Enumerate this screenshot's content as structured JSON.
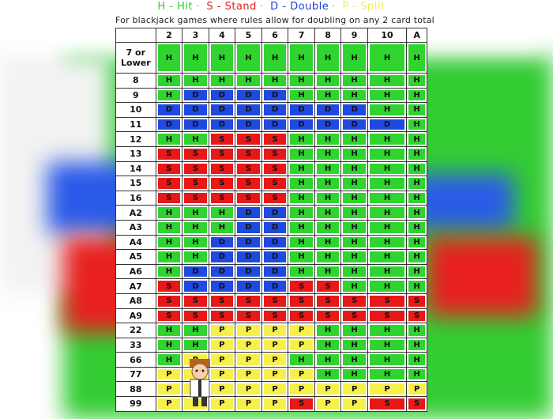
{
  "legend": {
    "hit": "H - Hit",
    "stand": "S - Stand",
    "double": "D - Double",
    "split": "P - Split"
  },
  "subtitle": "For blackjack games where rules allow for doubling on any 2 card total",
  "columns": [
    "2",
    "3",
    "4",
    "5",
    "6",
    "7",
    "8",
    "9",
    "10",
    "A"
  ],
  "rows": [
    {
      "label": "7 or Lower",
      "cells": [
        "H",
        "H",
        "H",
        "H",
        "H",
        "H",
        "H",
        "H",
        "H",
        "H"
      ]
    },
    {
      "label": "8",
      "cells": [
        "H",
        "H",
        "H",
        "H",
        "H",
        "H",
        "H",
        "H",
        "H",
        "H"
      ]
    },
    {
      "label": "9",
      "cells": [
        "H",
        "D",
        "D",
        "D",
        "D",
        "H",
        "H",
        "H",
        "H",
        "H"
      ]
    },
    {
      "label": "10",
      "cells": [
        "D",
        "D",
        "D",
        "D",
        "D",
        "D",
        "D",
        "D",
        "H",
        "H"
      ]
    },
    {
      "label": "11",
      "cells": [
        "D",
        "D",
        "D",
        "D",
        "D",
        "D",
        "D",
        "D",
        "D",
        "H"
      ]
    },
    {
      "label": "12",
      "cells": [
        "H",
        "H",
        "S",
        "S",
        "S",
        "H",
        "H",
        "H",
        "H",
        "H"
      ]
    },
    {
      "label": "13",
      "cells": [
        "S",
        "S",
        "S",
        "S",
        "S",
        "H",
        "H",
        "H",
        "H",
        "H"
      ]
    },
    {
      "label": "14",
      "cells": [
        "S",
        "S",
        "S",
        "S",
        "S",
        "H",
        "H",
        "H",
        "H",
        "H"
      ]
    },
    {
      "label": "15",
      "cells": [
        "S",
        "S",
        "S",
        "S",
        "S",
        "H",
        "H",
        "H",
        "H",
        "H"
      ]
    },
    {
      "label": "16",
      "cells": [
        "S",
        "S",
        "S",
        "S",
        "S",
        "H",
        "H",
        "H",
        "H",
        "H"
      ]
    },
    {
      "label": "A2",
      "cells": [
        "H",
        "H",
        "H",
        "D",
        "D",
        "H",
        "H",
        "H",
        "H",
        "H"
      ]
    },
    {
      "label": "A3",
      "cells": [
        "H",
        "H",
        "H",
        "D",
        "D",
        "H",
        "H",
        "H",
        "H",
        "H"
      ]
    },
    {
      "label": "A4",
      "cells": [
        "H",
        "H",
        "D",
        "D",
        "D",
        "H",
        "H",
        "H",
        "H",
        "H"
      ]
    },
    {
      "label": "A5",
      "cells": [
        "H",
        "H",
        "D",
        "D",
        "D",
        "H",
        "H",
        "H",
        "H",
        "H"
      ]
    },
    {
      "label": "A6",
      "cells": [
        "H",
        "D",
        "D",
        "D",
        "D",
        "H",
        "H",
        "H",
        "H",
        "H"
      ]
    },
    {
      "label": "A7",
      "cells": [
        "S",
        "D",
        "D",
        "D",
        "D",
        "S",
        "S",
        "H",
        "H",
        "H"
      ]
    },
    {
      "label": "A8",
      "cells": [
        "S",
        "S",
        "S",
        "S",
        "S",
        "S",
        "S",
        "S",
        "S",
        "S"
      ]
    },
    {
      "label": "A9",
      "cells": [
        "S",
        "S",
        "S",
        "S",
        "S",
        "S",
        "S",
        "S",
        "S",
        "S"
      ]
    },
    {
      "label": "22",
      "cells": [
        "H",
        "H",
        "P",
        "P",
        "P",
        "P",
        "H",
        "H",
        "H",
        "H"
      ]
    },
    {
      "label": "33",
      "cells": [
        "H",
        "H",
        "P",
        "P",
        "P",
        "P",
        "H",
        "H",
        "H",
        "H"
      ]
    },
    {
      "label": "66",
      "cells": [
        "H",
        "P",
        "P",
        "P",
        "P",
        "H",
        "H",
        "H",
        "H",
        "H"
      ]
    },
    {
      "label": "77",
      "cells": [
        "P",
        "P",
        "P",
        "P",
        "P",
        "P",
        "H",
        "H",
        "H",
        "H"
      ]
    },
    {
      "label": "88",
      "cells": [
        "P",
        "P",
        "P",
        "P",
        "P",
        "P",
        "P",
        "P",
        "P",
        "P"
      ]
    },
    {
      "label": "99",
      "cells": [
        "P",
        "P",
        "P",
        "P",
        "P",
        "S",
        "P",
        "P",
        "S",
        "S"
      ]
    }
  ],
  "colors": {
    "H": "#2fd42f",
    "S": "#e81818",
    "D": "#1f49e0",
    "P": "#f7ef4a"
  },
  "icons": {
    "mascot": "mascot-icon"
  }
}
